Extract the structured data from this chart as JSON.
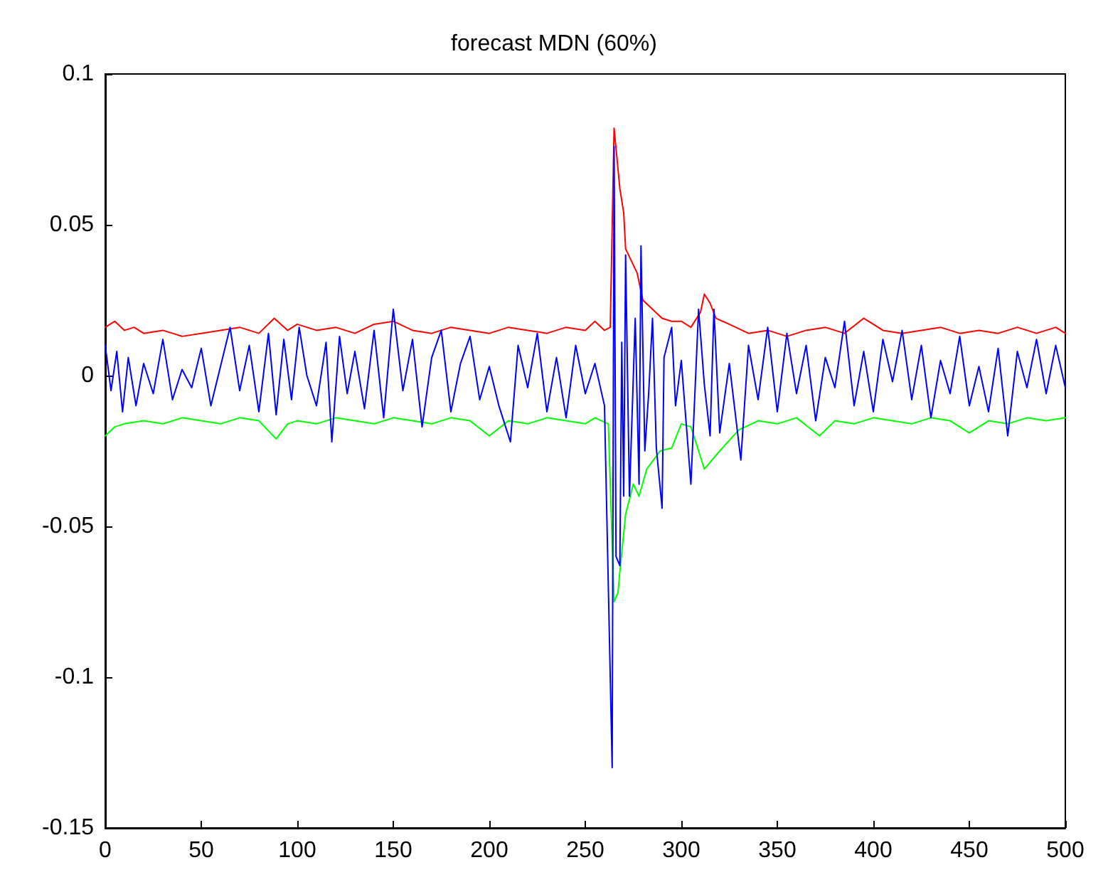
{
  "chart_data": {
    "type": "line",
    "title": "forecast MDN (60%)",
    "xlim": [
      0,
      500
    ],
    "ylim": [
      -0.15,
      0.1
    ],
    "xticks": [
      0,
      50,
      100,
      150,
      200,
      250,
      300,
      350,
      400,
      450,
      500
    ],
    "yticks": [
      -0.15,
      -0.1,
      -0.05,
      0,
      0.05,
      0.1
    ],
    "marker": "none",
    "line_style": "solid",
    "series": [
      {
        "color": "#ff0000",
        "x": [
          0,
          5,
          10,
          15,
          20,
          30,
          40,
          50,
          60,
          70,
          80,
          88,
          95,
          100,
          110,
          120,
          130,
          140,
          150,
          160,
          170,
          180,
          190,
          200,
          210,
          220,
          230,
          240,
          250,
          255,
          260,
          263,
          265,
          268,
          270,
          271,
          274,
          277,
          280,
          285,
          290,
          295,
          300,
          305,
          310,
          312,
          315,
          318,
          325,
          335,
          345,
          355,
          365,
          375,
          385,
          395,
          405,
          415,
          425,
          435,
          445,
          455,
          465,
          475,
          485,
          495,
          500
        ],
        "values": [
          0.016,
          0.018,
          0.015,
          0.016,
          0.014,
          0.015,
          0.013,
          0.014,
          0.015,
          0.016,
          0.014,
          0.019,
          0.015,
          0.017,
          0.015,
          0.016,
          0.014,
          0.017,
          0.018,
          0.015,
          0.014,
          0.016,
          0.015,
          0.014,
          0.016,
          0.015,
          0.014,
          0.016,
          0.015,
          0.018,
          0.015,
          0.016,
          0.082,
          0.062,
          0.054,
          0.042,
          0.038,
          0.034,
          0.025,
          0.022,
          0.019,
          0.018,
          0.018,
          0.016,
          0.021,
          0.027,
          0.024,
          0.019,
          0.017,
          0.014,
          0.015,
          0.013,
          0.015,
          0.016,
          0.014,
          0.019,
          0.015,
          0.014,
          0.015,
          0.016,
          0.014,
          0.015,
          0.014,
          0.016,
          0.014,
          0.016,
          0.014
        ]
      },
      {
        "color": "#00ff00",
        "x": [
          0,
          5,
          10,
          20,
          30,
          40,
          50,
          60,
          70,
          80,
          89,
          95,
          100,
          110,
          120,
          130,
          140,
          150,
          160,
          170,
          180,
          190,
          200,
          210,
          220,
          230,
          240,
          250,
          255,
          262,
          265,
          267,
          268,
          271,
          275,
          278,
          282,
          289,
          295,
          300,
          305,
          312,
          320,
          330,
          340,
          350,
          360,
          372,
          380,
          390,
          400,
          410,
          420,
          430,
          440,
          450,
          460,
          470,
          480,
          490,
          500
        ],
        "values": [
          -0.02,
          -0.017,
          -0.016,
          -0.015,
          -0.016,
          -0.014,
          -0.015,
          -0.016,
          -0.014,
          -0.015,
          -0.021,
          -0.016,
          -0.015,
          -0.016,
          -0.014,
          -0.015,
          -0.016,
          -0.014,
          -0.015,
          -0.016,
          -0.014,
          -0.015,
          -0.02,
          -0.015,
          -0.016,
          -0.014,
          -0.015,
          -0.016,
          -0.014,
          -0.016,
          -0.075,
          -0.072,
          -0.065,
          -0.046,
          -0.036,
          -0.04,
          -0.031,
          -0.025,
          -0.024,
          -0.016,
          -0.017,
          -0.031,
          -0.025,
          -0.018,
          -0.015,
          -0.016,
          -0.014,
          -0.02,
          -0.015,
          -0.016,
          -0.014,
          -0.015,
          -0.016,
          -0.014,
          -0.015,
          -0.019,
          -0.015,
          -0.016,
          -0.014,
          -0.015,
          -0.014
        ]
      },
      {
        "color": "#0000ff",
        "x": [
          0,
          3,
          6,
          9,
          12,
          16,
          20,
          25,
          30,
          35,
          40,
          45,
          50,
          55,
          60,
          65,
          70,
          75,
          80,
          85,
          89,
          93,
          97,
          101,
          105,
          110,
          115,
          118,
          122,
          126,
          130,
          135,
          140,
          145,
          150,
          155,
          160,
          165,
          170,
          175,
          180,
          185,
          190,
          195,
          200,
          205,
          211,
          215,
          220,
          225,
          230,
          235,
          240,
          245,
          250,
          255,
          260,
          264,
          265,
          266,
          268,
          269,
          270,
          271,
          273,
          276,
          278,
          279,
          281,
          283,
          285,
          287,
          290,
          291,
          295,
          297,
          300,
          305,
          309,
          312,
          315,
          317,
          320,
          325,
          331,
          335,
          340,
          345,
          350,
          355,
          360,
          365,
          370,
          375,
          380,
          385,
          390,
          395,
          400,
          405,
          410,
          415,
          420,
          425,
          430,
          435,
          440,
          445,
          450,
          455,
          460,
          465,
          470,
          475,
          480,
          485,
          490,
          495,
          500
        ],
        "values": [
          0.01,
          -0.005,
          0.008,
          -0.012,
          0.006,
          -0.01,
          0.004,
          -0.006,
          0.012,
          -0.008,
          0.002,
          -0.004,
          0.009,
          -0.01,
          0.003,
          0.016,
          -0.005,
          0.01,
          -0.012,
          0.014,
          -0.013,
          0.012,
          -0.008,
          0.016,
          0.0,
          -0.01,
          0.011,
          -0.022,
          0.013,
          -0.006,
          0.008,
          -0.011,
          0.015,
          -0.014,
          0.022,
          -0.005,
          0.012,
          -0.017,
          0.006,
          0.015,
          -0.012,
          0.004,
          0.013,
          -0.008,
          0.003,
          -0.01,
          -0.022,
          0.01,
          -0.004,
          0.014,
          -0.012,
          0.006,
          -0.014,
          0.01,
          -0.006,
          0.004,
          -0.01,
          -0.13,
          0.076,
          -0.06,
          -0.063,
          0.011,
          -0.04,
          0.04,
          -0.04,
          0.019,
          -0.036,
          0.043,
          -0.025,
          -0.006,
          0.019,
          -0.024,
          -0.044,
          0.006,
          0.016,
          -0.01,
          0.005,
          -0.036,
          0.022,
          -0.003,
          -0.02,
          0.022,
          -0.019,
          0.004,
          -0.028,
          0.01,
          -0.008,
          0.016,
          -0.012,
          0.014,
          -0.006,
          0.01,
          -0.015,
          0.006,
          -0.004,
          0.018,
          -0.01,
          0.008,
          -0.012,
          0.012,
          -0.002,
          0.015,
          -0.008,
          0.01,
          -0.014,
          0.005,
          -0.006,
          0.013,
          -0.01,
          0.003,
          -0.012,
          0.009,
          -0.02,
          0.008,
          -0.004,
          0.012,
          -0.006,
          0.01,
          -0.004
        ]
      }
    ]
  }
}
